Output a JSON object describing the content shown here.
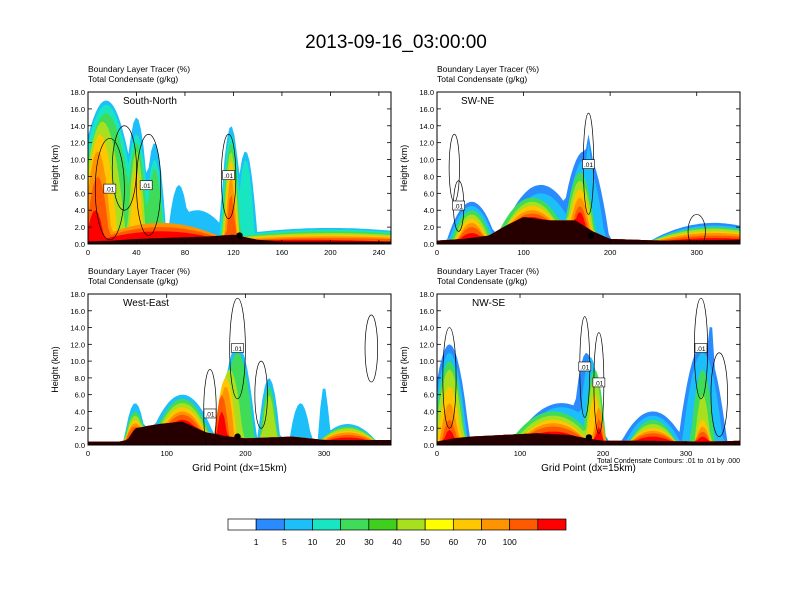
{
  "title": "2013-09-16_03:00:00",
  "colors": {
    "bg": "#ffffff",
    "terrain": "#000000",
    "contour": "#000000"
  },
  "shading_levels": [
    "1",
    "5",
    "10",
    "20",
    "30",
    "40",
    "50",
    "60",
    "70",
    "100"
  ],
  "shading_colors": [
    "#ffffff",
    "#2a8bff",
    "#1cbff9",
    "#18e6c3",
    "#3fdc5a",
    "#3fcf1c",
    "#a8e020",
    "#ffff00",
    "#ffc700",
    "#ff9400",
    "#ff5a00",
    "#ff0000"
  ],
  "footnote": "Total Condensate Contours: .01 to .01 by .000",
  "xlabel": "Grid Point (dx=15km)",
  "chart_data": [
    {
      "type": "heatmap",
      "panel_label": "South-North",
      "title_line1": "Boundary Layer Tracer    (%)",
      "title_line2": "Total Condensate    (g/kg)",
      "ylabel": "Height (km)",
      "xlabel": "",
      "xlim": [
        0,
        250
      ],
      "ylim": [
        0,
        18
      ],
      "xticks": [
        0,
        40,
        80,
        120,
        160,
        200,
        240
      ],
      "yticks": [
        "0.0",
        "2.0",
        "4.0",
        "6.0",
        "8.0",
        "10.0",
        "12.0",
        "14.0",
        "16.0",
        "18.0"
      ],
      "contour_labels": [
        {
          "text": ".01",
          "x": 18,
          "y": 6.5
        },
        {
          "text": ".01",
          "x": 48,
          "y": 6.9
        },
        {
          "text": ".01",
          "x": 116,
          "y": 8.1
        }
      ],
      "marker": {
        "x": 125,
        "y": 1.0
      }
    },
    {
      "type": "heatmap",
      "panel_label": "SW-NE",
      "title_line1": "Boundary Layer Tracer    (%)",
      "title_line2": "Total Condensate    (g/kg)",
      "ylabel": "Height (km)",
      "xlabel": "",
      "xlim": [
        0,
        350
      ],
      "ylim": [
        0,
        18
      ],
      "xticks": [
        0,
        100,
        200,
        300
      ],
      "yticks": [
        "0.0",
        "2.0",
        "4.0",
        "6.0",
        "8.0",
        "10.0",
        "12.0",
        "14.0",
        "16.0",
        "18.0"
      ],
      "contour_labels": [
        {
          "text": ".01",
          "x": 175,
          "y": 9.4
        },
        {
          "text": ".01",
          "x": 25,
          "y": 4.5
        }
      ],
      "marker": {
        "x": 178,
        "y": 1.0
      }
    },
    {
      "type": "heatmap",
      "panel_label": "West-East",
      "title_line1": "Boundary Layer Tracer    (%)",
      "title_line2": "Total Condensate    (g/kg)",
      "ylabel": "Height (km)",
      "xlabel": "Grid Point (dx=15km)",
      "xlim": [
        0,
        385
      ],
      "ylim": [
        0,
        18
      ],
      "xticks": [
        0,
        100,
        200,
        300
      ],
      "yticks": [
        "0.0",
        "2.0",
        "4.0",
        "6.0",
        "8.0",
        "10.0",
        "12.0",
        "14.0",
        "16.0",
        "18.0"
      ],
      "contour_labels": [
        {
          "text": ".01",
          "x": 190,
          "y": 11.5
        },
        {
          "text": ".01",
          "x": 155,
          "y": 3.7
        }
      ],
      "marker": {
        "x": 190,
        "y": 1.0
      }
    },
    {
      "type": "heatmap",
      "panel_label": "NW-SE",
      "title_line1": "Boundary Layer Tracer    (%)",
      "title_line2": "Total Condensate    (g/kg)",
      "ylabel": "Height (km)",
      "xlabel": "Grid Point (dx=15km)",
      "xlim": [
        0,
        365
      ],
      "ylim": [
        0,
        18
      ],
      "xticks": [
        0,
        100,
        200,
        300
      ],
      "yticks": [
        "0.0",
        "2.0",
        "4.0",
        "6.0",
        "8.0",
        "10.0",
        "12.0",
        "14.0",
        "16.0",
        "18.0"
      ],
      "contour_labels": [
        {
          "text": ".01",
          "x": 178,
          "y": 9.3
        },
        {
          "text": ".01",
          "x": 195,
          "y": 7.4
        },
        {
          "text": ".01",
          "x": 318,
          "y": 11.5
        }
      ],
      "marker": {
        "x": 183,
        "y": 0.9
      }
    }
  ]
}
